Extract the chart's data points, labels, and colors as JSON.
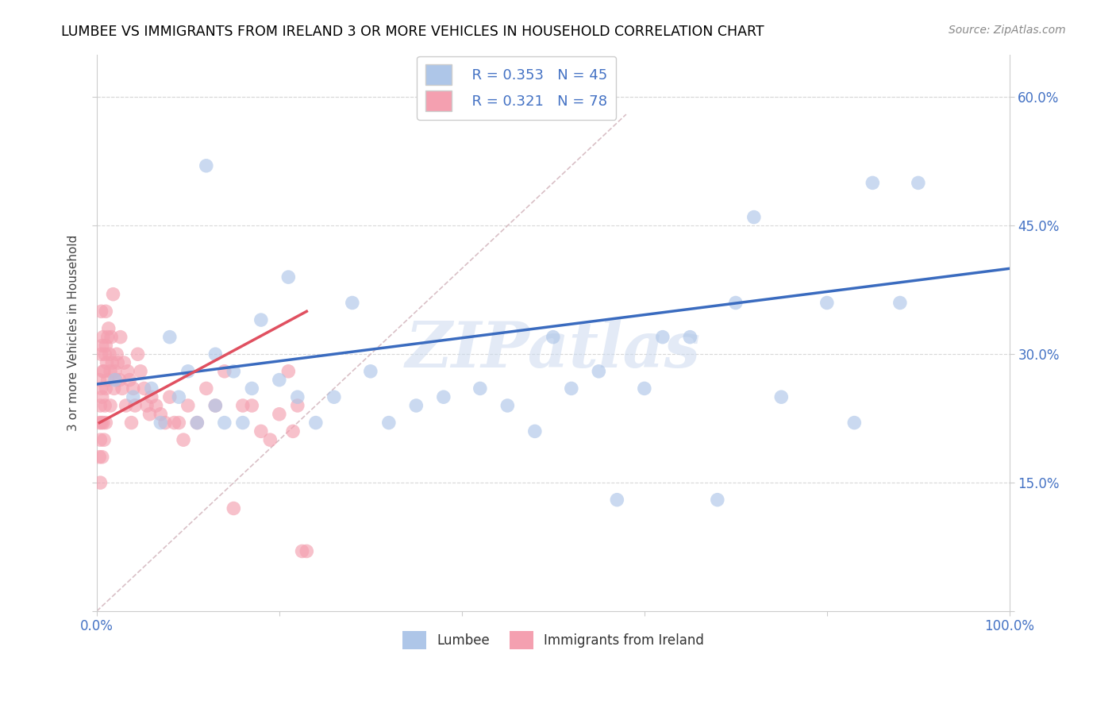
{
  "title": "LUMBEE VS IMMIGRANTS FROM IRELAND 3 OR MORE VEHICLES IN HOUSEHOLD CORRELATION CHART",
  "source": "Source: ZipAtlas.com",
  "ylabel": "3 or more Vehicles in Household",
  "xlim": [
    0.0,
    1.0
  ],
  "ylim": [
    0.0,
    0.65
  ],
  "xticks": [
    0.0,
    0.2,
    0.4,
    0.6,
    0.8,
    1.0
  ],
  "xticklabels": [
    "0.0%",
    "",
    "",
    "",
    "",
    "100.0%"
  ],
  "yticks": [
    0.0,
    0.15,
    0.3,
    0.45,
    0.6
  ],
  "yticklabels": [
    "",
    "15.0%",
    "30.0%",
    "45.0%",
    "60.0%"
  ],
  "lumbee_R": "0.353",
  "lumbee_N": "45",
  "ireland_R": "0.321",
  "ireland_N": "78",
  "lumbee_color": "#aec6e8",
  "ireland_color": "#f4a0b0",
  "lumbee_line_color": "#3a6bbf",
  "ireland_line_color": "#e05060",
  "diagonal_color": "#d0b0b8",
  "watermark": "ZIPatlas",
  "lumbee_x": [
    0.02,
    0.04,
    0.06,
    0.07,
    0.08,
    0.09,
    0.1,
    0.11,
    0.12,
    0.13,
    0.13,
    0.14,
    0.15,
    0.16,
    0.17,
    0.18,
    0.2,
    0.21,
    0.22,
    0.24,
    0.26,
    0.28,
    0.3,
    0.32,
    0.35,
    0.38,
    0.42,
    0.45,
    0.48,
    0.5,
    0.52,
    0.55,
    0.57,
    0.6,
    0.62,
    0.65,
    0.68,
    0.7,
    0.72,
    0.75,
    0.8,
    0.83,
    0.85,
    0.88,
    0.9
  ],
  "lumbee_y": [
    0.27,
    0.25,
    0.26,
    0.22,
    0.32,
    0.25,
    0.28,
    0.22,
    0.52,
    0.3,
    0.24,
    0.22,
    0.28,
    0.22,
    0.26,
    0.34,
    0.27,
    0.39,
    0.25,
    0.22,
    0.25,
    0.36,
    0.28,
    0.22,
    0.24,
    0.25,
    0.26,
    0.24,
    0.21,
    0.32,
    0.26,
    0.28,
    0.13,
    0.26,
    0.32,
    0.32,
    0.13,
    0.36,
    0.46,
    0.25,
    0.36,
    0.22,
    0.5,
    0.36,
    0.5
  ],
  "ireland_x": [
    0.003,
    0.003,
    0.003,
    0.004,
    0.004,
    0.004,
    0.005,
    0.005,
    0.005,
    0.005,
    0.006,
    0.006,
    0.006,
    0.007,
    0.007,
    0.007,
    0.008,
    0.008,
    0.009,
    0.009,
    0.01,
    0.01,
    0.01,
    0.01,
    0.011,
    0.012,
    0.012,
    0.013,
    0.014,
    0.015,
    0.015,
    0.016,
    0.017,
    0.018,
    0.019,
    0.02,
    0.021,
    0.022,
    0.023,
    0.025,
    0.026,
    0.028,
    0.03,
    0.032,
    0.034,
    0.036,
    0.038,
    0.04,
    0.042,
    0.045,
    0.048,
    0.052,
    0.055,
    0.058,
    0.06,
    0.065,
    0.07,
    0.075,
    0.08,
    0.085,
    0.09,
    0.095,
    0.1,
    0.11,
    0.12,
    0.13,
    0.14,
    0.15,
    0.16,
    0.17,
    0.18,
    0.19,
    0.2,
    0.21,
    0.215,
    0.22,
    0.225,
    0.23
  ],
  "ireland_y": [
    0.18,
    0.22,
    0.27,
    0.15,
    0.2,
    0.24,
    0.22,
    0.26,
    0.3,
    0.35,
    0.18,
    0.25,
    0.31,
    0.22,
    0.28,
    0.32,
    0.2,
    0.28,
    0.24,
    0.3,
    0.22,
    0.26,
    0.31,
    0.35,
    0.29,
    0.27,
    0.32,
    0.33,
    0.3,
    0.24,
    0.28,
    0.32,
    0.29,
    0.37,
    0.26,
    0.28,
    0.27,
    0.3,
    0.29,
    0.27,
    0.32,
    0.26,
    0.29,
    0.24,
    0.28,
    0.27,
    0.22,
    0.26,
    0.24,
    0.3,
    0.28,
    0.26,
    0.24,
    0.23,
    0.25,
    0.24,
    0.23,
    0.22,
    0.25,
    0.22,
    0.22,
    0.2,
    0.24,
    0.22,
    0.26,
    0.24,
    0.28,
    0.12,
    0.24,
    0.24,
    0.21,
    0.2,
    0.23,
    0.28,
    0.21,
    0.24,
    0.07,
    0.07
  ],
  "ireland_line_x0": 0.003,
  "ireland_line_x1": 0.23,
  "ireland_line_y0": 0.22,
  "ireland_line_y1": 0.35,
  "lumbee_line_x0": 0.0,
  "lumbee_line_x1": 1.0,
  "lumbee_line_y0": 0.265,
  "lumbee_line_y1": 0.4
}
